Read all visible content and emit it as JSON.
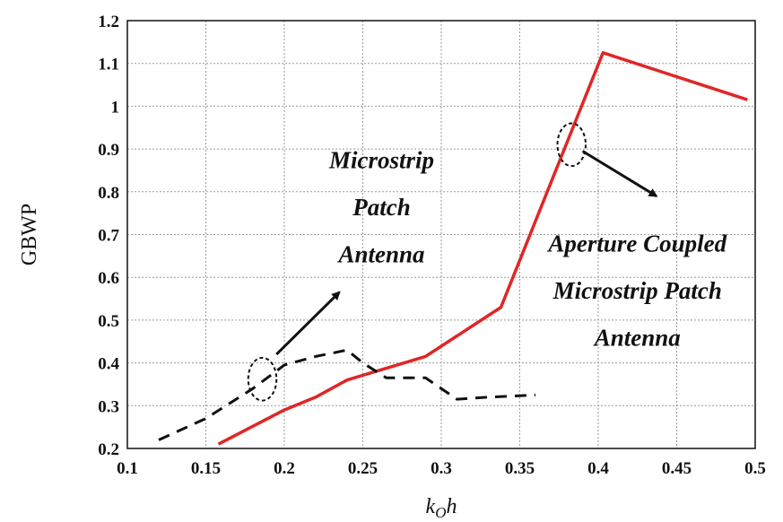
{
  "chart_data": {
    "type": "line",
    "title": "",
    "xlabel_main": "k",
    "xlabel_sub": "O",
    "xlabel_tail": "h",
    "ylabel": "GBWP",
    "xlim": [
      0.1,
      0.5
    ],
    "ylim": [
      0.2,
      1.2
    ],
    "x_ticks": [
      "0.1",
      "0.15",
      "0.2",
      "0.25",
      "0.3",
      "0.35",
      "0.4",
      "0.45",
      "0.5"
    ],
    "y_ticks": [
      "0.2",
      "0.3",
      "0.4",
      "0.5",
      "0.6",
      "0.7",
      "0.8",
      "0.9",
      "1",
      "1.1",
      "1.2"
    ],
    "grid": true,
    "series": [
      {
        "name": "",
        "color": "#e02626",
        "style": "solid",
        "x": [
          0.158,
          0.2,
          0.22,
          0.24,
          0.29,
          0.338,
          0.403,
          0.495
        ],
        "y": [
          0.21,
          0.29,
          0.32,
          0.36,
          0.415,
          0.53,
          1.125,
          1.015
        ]
      },
      {
        "name": "",
        "color": "#111111",
        "style": "dashed",
        "x": [
          0.12,
          0.15,
          0.18,
          0.2,
          0.22,
          0.24,
          0.25,
          0.265,
          0.29,
          0.3,
          0.31,
          0.33,
          0.36
        ],
        "y": [
          0.22,
          0.27,
          0.34,
          0.395,
          0.415,
          0.43,
          0.4,
          0.365,
          0.365,
          0.34,
          0.315,
          0.32,
          0.325
        ]
      }
    ],
    "annotations": [
      {
        "lines": [
          "Microstrip",
          "Patch",
          "Antenna"
        ],
        "text_x": 0.262,
        "text_y": [
          0.855,
          0.745,
          0.635
        ],
        "ellipse": {
          "x": 0.186,
          "y": 0.362,
          "rx": 0.009,
          "ry": 0.05
        },
        "arrow_from": [
          0.195,
          0.42
        ],
        "arrow_to": [
          0.235,
          0.565
        ]
      },
      {
        "lines": [
          "Aperture Coupled",
          "Microstrip Patch",
          "Antenna"
        ],
        "text_x": 0.425,
        "text_y": [
          0.66,
          0.55,
          0.44
        ],
        "ellipse": {
          "x": 0.383,
          "y": 0.91,
          "rx": 0.009,
          "ry": 0.05
        },
        "arrow_from": [
          0.39,
          0.895
        ],
        "arrow_to": [
          0.437,
          0.79
        ]
      }
    ]
  }
}
